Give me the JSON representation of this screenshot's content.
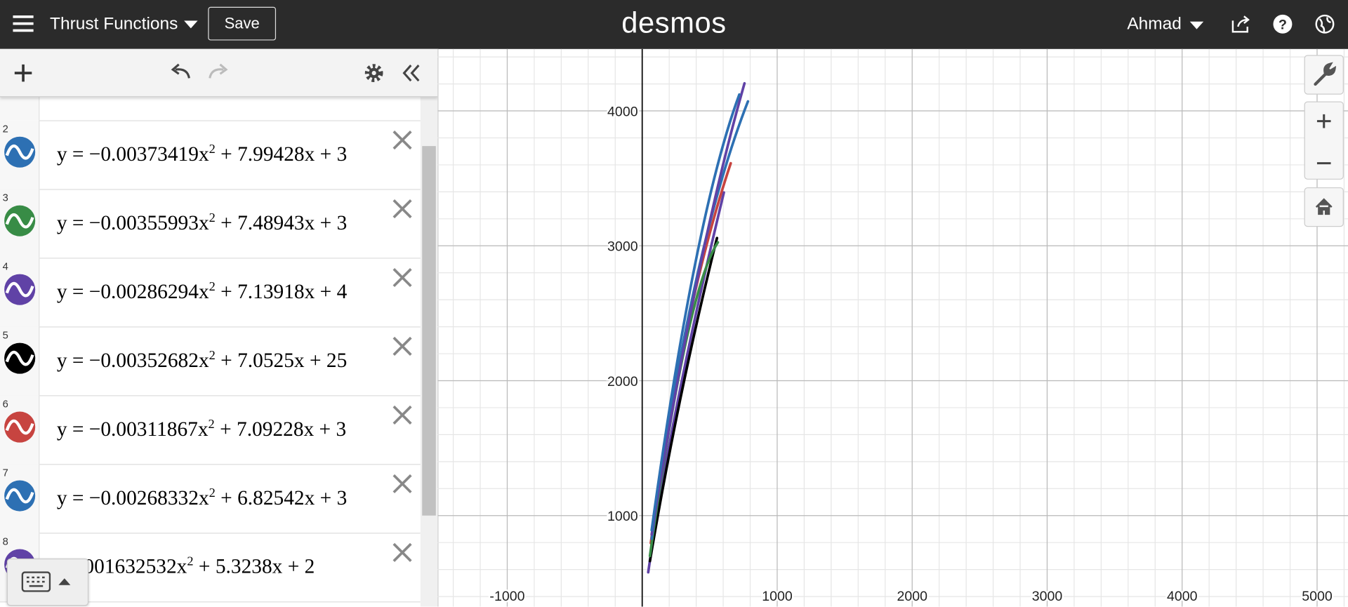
{
  "header": {
    "graph_title": "Thrust Functions",
    "save_button": "Save",
    "logo": "desmos",
    "user_name": "Ahmad"
  },
  "expressions": [
    {
      "number": "2",
      "color": "#2d70b3",
      "text_before": "y = −0.00373419x",
      "exponent": "2",
      "text_after": " + 7.99428x + 3"
    },
    {
      "number": "3",
      "color": "#388c46",
      "text_before": "y = −0.00355993x",
      "exponent": "2",
      "text_after": " + 7.48943x + 3"
    },
    {
      "number": "4",
      "color": "#6042a6",
      "text_before": "y = −0.00286294x",
      "exponent": "2",
      "text_after": " + 7.13918x + 4"
    },
    {
      "number": "5",
      "color": "#000000",
      "text_before": "y = −0.00352682x",
      "exponent": "2",
      "text_after": " + 7.0525x + 25"
    },
    {
      "number": "6",
      "color": "#c74440",
      "text_before": "y = −0.00311867x",
      "exponent": "2",
      "text_after": " + 7.09228x + 3"
    },
    {
      "number": "7",
      "color": "#2d70b3",
      "text_before": "y = −0.00268332x",
      "exponent": "2",
      "text_after": " + 6.82542x + 3"
    },
    {
      "number": "8",
      "color": "#6042a6",
      "text_before": "−0.001632532x",
      "exponent": "2",
      "text_after": " + 5.3238x + 2"
    }
  ],
  "graph": {
    "xlim": [
      -1516,
      5229
    ],
    "ylim": [
      325,
      4459
    ],
    "xticks": [
      -1000,
      1000,
      2000,
      3000,
      4000,
      5000
    ],
    "yticks": [
      1000,
      2000,
      3000,
      4000
    ]
  }
}
